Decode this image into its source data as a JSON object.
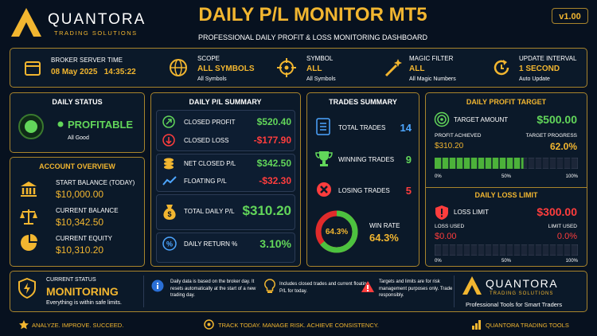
{
  "header": {
    "brand": "QUANTORA",
    "brand_sub": "TRADING SOLUTIONS",
    "title": "DAILY P/L MONITOR MT5",
    "subtitle": "PROFESSIONAL DAILY PROFIT & LOSS MONITORING DASHBOARD",
    "version": "v1.00"
  },
  "info_bar": [
    {
      "label": "BROKER SERVER TIME",
      "value": "08 May 2025   14:35:22"
    },
    {
      "label": "SCOPE",
      "value": "ALL SYMBOLS",
      "detail": "All Symbols"
    },
    {
      "label": "SYMBOL",
      "value": "ALL",
      "detail": "All Symbols"
    },
    {
      "label": "MAGIC FILTER",
      "value": "ALL",
      "detail": "All Magic Numbers"
    },
    {
      "label": "UPDATE INTERVAL",
      "value": "1 SECOND",
      "detail": "Auto Update"
    }
  ],
  "daily_status": {
    "title": "DAILY STATUS",
    "status": "PROFITABLE",
    "detail": "All Good"
  },
  "account_overview": {
    "title": "ACCOUNT OVERVIEW",
    "rows": [
      {
        "label": "START BALANCE (TODAY)",
        "value": "$10,000.00"
      },
      {
        "label": "CURRENT BALANCE",
        "value": "$10,342.50"
      },
      {
        "label": "CURRENT EQUITY",
        "value": "$10,310.20"
      }
    ]
  },
  "pl_summary": {
    "title": "DAILY P/L SUMMARY",
    "rows": [
      {
        "label": "CLOSED PROFIT",
        "value": "$520.40"
      },
      {
        "label": "CLOSED LOSS",
        "value": "-$177.90"
      },
      {
        "label": "NET CLOSED P/L",
        "value": "$342.50"
      },
      {
        "label": "FLOATING P/L",
        "value": "-$32.30"
      },
      {
        "label": "TOTAL DAILY P/L",
        "value": "$310.20"
      },
      {
        "label": "DAILY RETURN %",
        "value": "3.10%"
      }
    ]
  },
  "trades_summary": {
    "title": "TRADES SUMMARY",
    "rows": [
      {
        "label": "TOTAL TRADES",
        "value": "14"
      },
      {
        "label": "WINNING TRADES",
        "value": "9"
      },
      {
        "label": "LOSING TRADES",
        "value": "5"
      }
    ],
    "win_rate": {
      "label": "WIN RATE",
      "value": 64.3,
      "value_label": "64.3%"
    }
  },
  "profit_target": {
    "title": "DAILY PROFIT TARGET",
    "amount_label": "TARGET AMOUNT",
    "amount": "$500.00",
    "achieved_label": "PROFIT ACHIEVED",
    "achieved": "$310.20",
    "progress_label": "TARGET PROGRESS",
    "progress": {
      "value": 62.0,
      "label": "62.0%"
    },
    "scale": [
      {
        "value": 0,
        "label": "0%"
      },
      {
        "value": 50,
        "label": "50%"
      },
      {
        "value": 100,
        "label": "100%"
      }
    ]
  },
  "loss_limit": {
    "title": "DAILY LOSS LIMIT",
    "limit_label": "LOSS LIMIT",
    "limit": "$300.00",
    "used_label": "LOSS USED",
    "used": "$0.00",
    "used_pct_label": "LIMIT USED",
    "used_pct": {
      "value": 0.0,
      "label": "0.0%"
    },
    "scale": [
      {
        "value": 0,
        "label": "0%"
      },
      {
        "value": 50,
        "label": "50%"
      },
      {
        "value": 100,
        "label": "100%"
      }
    ]
  },
  "status_bar": {
    "title": "CURRENT STATUS",
    "status": "MONITORING",
    "detail": "Everything is within safe limits.",
    "notes": [
      "Daily data is based on the broker day. It resets automatically at the start of a new trading day.",
      "Includes closed trades and current floating P/L for today.",
      "Targets and limits are for risk management purposes only. Trade responsibly."
    ],
    "brand": "QUANTORA",
    "brand_sub": "TRADING SOLUTIONS",
    "tagline": "Professional Tools for Smart Traders"
  },
  "footer": [
    "ANALYZE. IMPROVE. SUCCEED.",
    "TRACK TODAY. MANAGE RISK. ACHIEVE CONSISTENCY.",
    "QUANTORA TRADING TOOLS"
  ]
}
